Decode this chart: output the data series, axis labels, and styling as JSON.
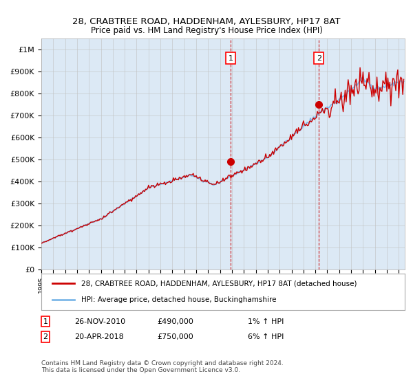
{
  "title1": "28, CRABTREE ROAD, HADDENHAM, AYLESBURY, HP17 8AT",
  "title2": "Price paid vs. HM Land Registry's House Price Index (HPI)",
  "hpi_label": "HPI: Average price, detached house, Buckinghamshire",
  "price_label": "28, CRABTREE ROAD, HADDENHAM, AYLESBURY, HP17 8AT (detached house)",
  "sale1_date": "26-NOV-2010",
  "sale1_price": 490000,
  "sale1_hpi": "1% ↑ HPI",
  "sale1_x": 2010.9,
  "sale2_date": "20-APR-2018",
  "sale2_price": 750000,
  "sale2_hpi": "6% ↑ HPI",
  "sale2_x": 2018.3,
  "ylim": [
    0,
    1050000
  ],
  "xlim_start": 1995,
  "xlim_end": 2025.5,
  "background_color": "#dce9f5",
  "hpi_color": "#7db8e8",
  "price_color": "#cc0000",
  "grid_color": "#c0c0c0",
  "footer": "Contains HM Land Registry data © Crown copyright and database right 2024.\nThis data is licensed under the Open Government Licence v3.0.",
  "yticks": [
    0,
    100000,
    200000,
    300000,
    400000,
    500000,
    600000,
    700000,
    800000,
    900000,
    1000000
  ],
  "ytick_labels": [
    "£0",
    "£100K",
    "£200K",
    "£300K",
    "£400K",
    "£500K",
    "£600K",
    "£700K",
    "£800K",
    "£900K",
    "£1M"
  ]
}
